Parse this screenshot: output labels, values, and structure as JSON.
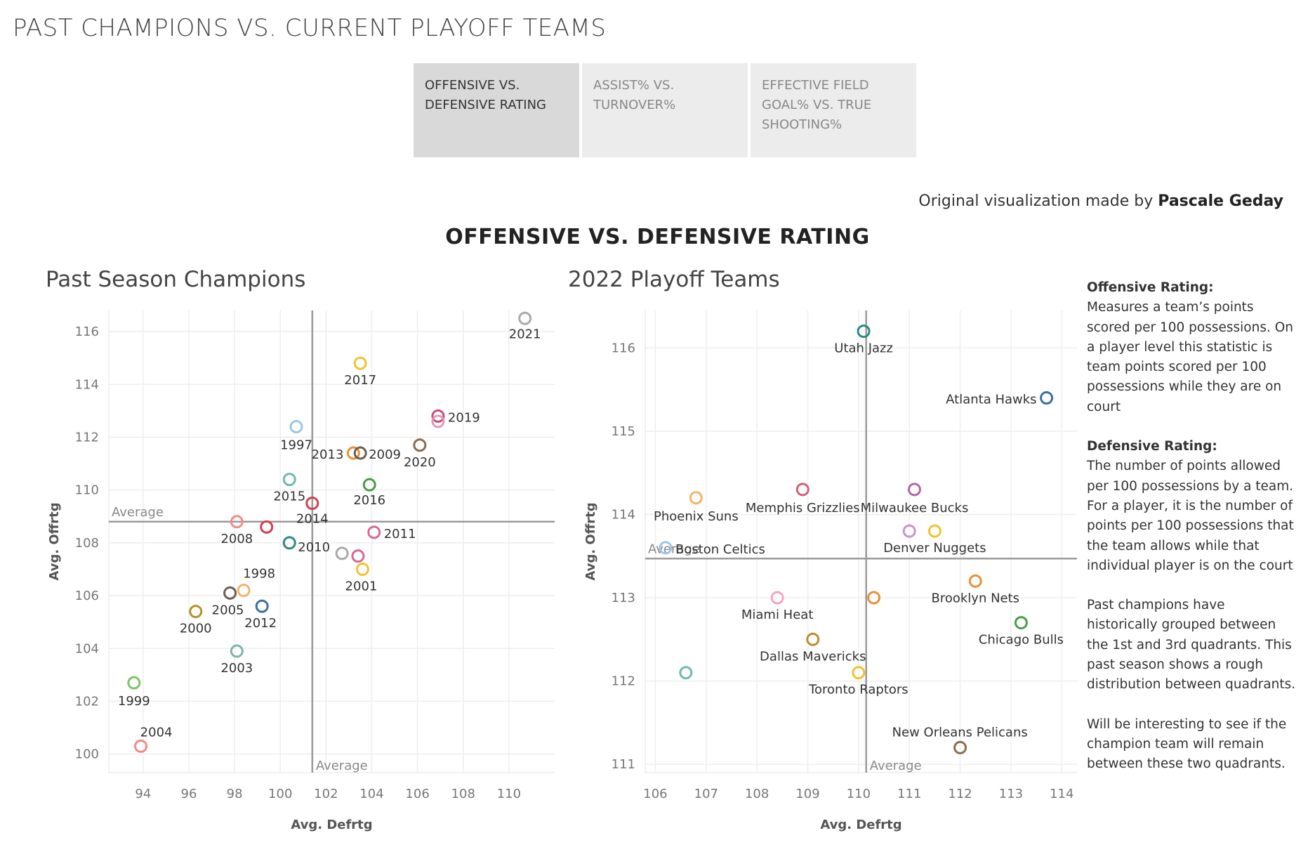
{
  "page": {
    "title": "PAST CHAMPIONS VS. CURRENT PLAYOFF TEAMS",
    "credit_prefix": "Original visualization made by",
    "credit_author": "Pascale Geday",
    "viz_title": "OFFENSIVE VS. DEFENSIVE RATING"
  },
  "tabs": [
    {
      "label": "OFFENSIVE VS. DEFENSIVE RATING",
      "active": true
    },
    {
      "label": "ASSIST% VS. TURNOVER%",
      "active": false
    },
    {
      "label": "EFFECTIVE FIELD GOAL% VS. TRUE SHOOTING%",
      "active": false
    }
  ],
  "sidebar": {
    "off_heading": "Offensive Rating:",
    "off_text": "Measures a team’s points scored per 100 possessions. On a player level this statistic is team points scored per 100 possessions while they are on court",
    "def_heading": "Defensive Rating:",
    "def_text": "The number of points allowed per 100 possessions by a team. For a player, it is the number of points per 100 possessions that the team allows while that individual player is on the court",
    "note1": "Past champions have historically grouped between the 1st and 3rd quadrants. This past season shows a rough distribution between quadrants.",
    "note2": "Will be interesting to see if the champion team will remain between these two quadrants."
  },
  "chart_data": [
    {
      "type": "scatter",
      "title": "Past Season Champions",
      "xlabel": "Avg. Defrtg",
      "ylabel": "Avg. Offrtg",
      "xlim": [
        92.5,
        112
      ],
      "ylim": [
        99.3,
        116.8
      ],
      "xticks": [
        94,
        96,
        98,
        100,
        102,
        104,
        106,
        108,
        110
      ],
      "yticks": [
        100,
        102,
        104,
        106,
        108,
        110,
        112,
        114,
        116
      ],
      "grid": true,
      "ref_lines": {
        "x": 101.4,
        "y": 108.8,
        "x_label": "Average",
        "y_label": "Average"
      },
      "points": [
        {
          "label": "2021",
          "x": 110.7,
          "y": 116.5,
          "color": "#aaaaaa"
        },
        {
          "label": "2017",
          "x": 103.5,
          "y": 114.8,
          "color": "#f1c232"
        },
        {
          "label": "2019",
          "x": 106.9,
          "y": 112.8,
          "color": "#c44e7a"
        },
        {
          "label": "",
          "x": 106.9,
          "y": 112.6,
          "color": "#e39ab4"
        },
        {
          "label": "1997",
          "x": 100.7,
          "y": 112.4,
          "color": "#9fc5e8"
        },
        {
          "label": "2013",
          "x": 103.2,
          "y": 111.4,
          "color": "#e69138"
        },
        {
          "label": "2009",
          "x": 103.5,
          "y": 111.4,
          "color": "#6b5e55"
        },
        {
          "label": "2020",
          "x": 106.1,
          "y": 111.7,
          "color": "#8c6d4f"
        },
        {
          "label": "2015",
          "x": 100.4,
          "y": 110.4,
          "color": "#6fb8b3"
        },
        {
          "label": "2016",
          "x": 103.9,
          "y": 110.2,
          "color": "#4a9b47"
        },
        {
          "label": "2014",
          "x": 101.4,
          "y": 109.5,
          "color": "#d1414f"
        },
        {
          "label": "2008",
          "x": 98.1,
          "y": 108.8,
          "color": "#f08b87"
        },
        {
          "label": "",
          "x": 99.4,
          "y": 108.6,
          "color": "#d1414f"
        },
        {
          "label": "2011",
          "x": 104.1,
          "y": 108.4,
          "color": "#d36b94"
        },
        {
          "label": "2010",
          "x": 100.4,
          "y": 108.0,
          "color": "#2a8a86"
        },
        {
          "label": "",
          "x": 102.7,
          "y": 107.6,
          "color": "#aaaaaa"
        },
        {
          "label": "",
          "x": 103.4,
          "y": 107.5,
          "color": "#d36b94"
        },
        {
          "label": "2001",
          "x": 103.6,
          "y": 107.0,
          "color": "#f1c232"
        },
        {
          "label": "1998",
          "x": 98.4,
          "y": 106.2,
          "color": "#f6b26b"
        },
        {
          "label": "2005",
          "x": 97.8,
          "y": 106.1,
          "color": "#6b5e55"
        },
        {
          "label": "2012",
          "x": 99.2,
          "y": 105.6,
          "color": "#3c6ea8"
        },
        {
          "label": "2000",
          "x": 96.3,
          "y": 105.4,
          "color": "#b8902a"
        },
        {
          "label": "2003",
          "x": 98.1,
          "y": 103.9,
          "color": "#7fb3ae"
        },
        {
          "label": "1999",
          "x": 93.6,
          "y": 102.7,
          "color": "#7cc36b"
        },
        {
          "label": "2004",
          "x": 93.9,
          "y": 100.3,
          "color": "#f08b87"
        }
      ]
    },
    {
      "type": "scatter",
      "title": "2022 Playoff Teams",
      "xlabel": "Avg. Defrtg",
      "ylabel": "Avg. Offrtg",
      "xlim": [
        105.8,
        114.3
      ],
      "ylim": [
        110.9,
        116.45
      ],
      "xticks": [
        106,
        107,
        108,
        109,
        110,
        111,
        112,
        113,
        114
      ],
      "yticks": [
        111,
        112,
        113,
        114,
        115,
        116
      ],
      "grid": true,
      "ref_lines": {
        "x": 110.15,
        "y": 113.47,
        "x_label": "Average",
        "y_label": "Average"
      },
      "points": [
        {
          "label": "Utah Jazz",
          "x": 110.1,
          "y": 116.2,
          "color": "#2a8a86"
        },
        {
          "label": "Atlanta Hawks",
          "x": 113.7,
          "y": 115.4,
          "color": "#3c6ea8"
        },
        {
          "label": "Phoenix Suns",
          "x": 106.8,
          "y": 114.2,
          "color": "#f6b26b"
        },
        {
          "label": "Memphis Grizzlies",
          "x": 108.9,
          "y": 114.3,
          "color": "#d1607a"
        },
        {
          "label": "Milwaukee Bucks",
          "x": 111.1,
          "y": 114.3,
          "color": "#b06aa0"
        },
        {
          "label": "",
          "x": 111.0,
          "y": 113.8,
          "color": "#c994c7"
        },
        {
          "label": "Denver Nuggets",
          "x": 111.5,
          "y": 113.8,
          "color": "#f1c232"
        },
        {
          "label": "Boston Celtics",
          "x": 106.2,
          "y": 113.6,
          "color": "#9fc5e8"
        },
        {
          "label": "Brooklyn Nets",
          "x": 112.3,
          "y": 113.2,
          "color": "#e69138"
        },
        {
          "label": "Miami Heat",
          "x": 108.4,
          "y": 113.0,
          "color": "#f4a6c0"
        },
        {
          "label": "",
          "x": 110.3,
          "y": 113.0,
          "color": "#e69138"
        },
        {
          "label": "Chicago Bulls",
          "x": 113.2,
          "y": 112.7,
          "color": "#4a9b47"
        },
        {
          "label": "Dallas Mavericks",
          "x": 109.1,
          "y": 112.5,
          "color": "#b8902a"
        },
        {
          "label": "",
          "x": 106.6,
          "y": 112.1,
          "color": "#6fb8b3"
        },
        {
          "label": "Toronto Raptors",
          "x": 110.0,
          "y": 112.1,
          "color": "#f1c232"
        },
        {
          "label": "New Orleans Pelicans",
          "x": 112.0,
          "y": 111.2,
          "color": "#8c6d4f"
        }
      ]
    }
  ]
}
